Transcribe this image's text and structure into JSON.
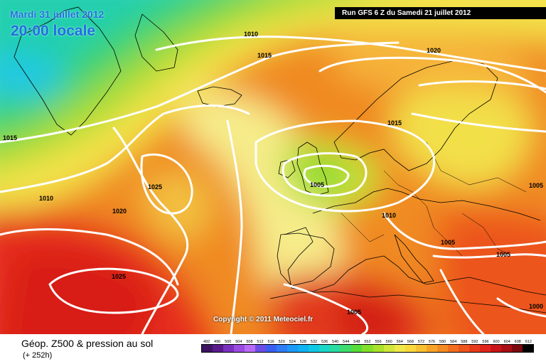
{
  "header": {
    "date": "Mardi 31 juillet 2012",
    "local_time": "20:00 locale",
    "run": "Run GFS 6 Z du Samedi 21 juillet 2012"
  },
  "map": {
    "copyright": "Copyright © 2011 Meteociel.fr",
    "isobar_labels": [
      "1010",
      "1015",
      "1020",
      "1015",
      "1015",
      "1010",
      "1025",
      "1020",
      "1025",
      "1005",
      "1010",
      "1005",
      "1005",
      "1005",
      "1005",
      "1000"
    ]
  },
  "footer": {
    "title": "Géop. Z500 & pression au sol",
    "subtitle": "(+ 252h)",
    "scale_values": [
      "492",
      "496",
      "500",
      "504",
      "508",
      "512",
      "516",
      "520",
      "524",
      "528",
      "532",
      "536",
      "540",
      "544",
      "548",
      "552",
      "556",
      "560",
      "564",
      "568",
      "572",
      "576",
      "580",
      "584",
      "588",
      "592",
      "596",
      "600",
      "604",
      "608",
      "612"
    ],
    "scale_colors": [
      "#3c1460",
      "#5a1a8c",
      "#7b2fbf",
      "#9a4be0",
      "#b86af5",
      "#6a4de6",
      "#3a5ff0",
      "#2f7cf5",
      "#1f99f7",
      "#10b2f2",
      "#0fc8e6",
      "#1ad6c8",
      "#2adba0",
      "#3fdc6e",
      "#57dc3a",
      "#82e02a",
      "#aae22a",
      "#cfe63a",
      "#f0e84a",
      "#f8d83c",
      "#f7c030",
      "#f6a428",
      "#f38a22",
      "#f06e1e",
      "#ec541c",
      "#e83a1a",
      "#e0241a",
      "#c81418",
      "#a80e14",
      "#7a0a0e",
      "#000000"
    ]
  }
}
